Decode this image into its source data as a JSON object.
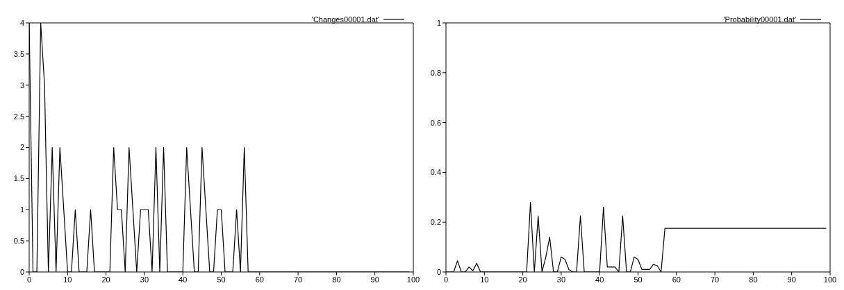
{
  "chart_data": [
    {
      "type": "line",
      "x": [
        0,
        1,
        2,
        3,
        4,
        5,
        6,
        7,
        8,
        9,
        10,
        11,
        12,
        13,
        14,
        15,
        16,
        17,
        18,
        19,
        20,
        21,
        22,
        23,
        24,
        25,
        26,
        27,
        28,
        29,
        30,
        31,
        32,
        33,
        34,
        35,
        36,
        37,
        38,
        39,
        40,
        41,
        42,
        43,
        44,
        45,
        46,
        47,
        48,
        49,
        50,
        51,
        52,
        53,
        54,
        55,
        56,
        57,
        58,
        59,
        60,
        61,
        62,
        63,
        64,
        65,
        66,
        67,
        68,
        69,
        70,
        71,
        72,
        73,
        74,
        75,
        76,
        77,
        78,
        79,
        80,
        81,
        82,
        83,
        84,
        85,
        86,
        87,
        88,
        89,
        90,
        91,
        92,
        93,
        94,
        95,
        96,
        97,
        98,
        99
      ],
      "series": [
        {
          "name": "'Changes00001.dat'",
          "color": "#000000",
          "values": [
            4,
            0,
            0,
            4,
            3,
            0,
            2,
            0,
            2,
            1,
            0,
            0,
            1,
            0,
            0,
            0,
            1,
            0,
            0,
            0,
            0,
            0,
            2,
            1,
            1,
            0,
            2,
            1,
            0,
            1,
            1,
            1,
            0,
            2,
            0,
            2,
            0,
            0,
            0,
            0,
            0,
            2,
            1,
            0,
            0,
            2,
            1,
            0,
            0,
            1,
            1,
            0,
            0,
            0,
            1,
            0,
            2,
            0,
            0,
            0,
            0,
            0,
            0,
            0,
            0,
            0,
            0,
            0,
            0,
            0,
            0,
            0,
            0,
            0,
            0,
            0,
            0,
            0,
            0,
            0,
            0,
            0,
            0,
            0,
            0,
            0,
            0,
            0,
            0,
            0,
            0,
            0,
            0,
            0,
            0,
            0,
            0,
            0,
            0,
            0
          ]
        }
      ],
      "xlim": [
        0,
        100
      ],
      "xticks": [
        0,
        10,
        20,
        30,
        40,
        50,
        60,
        70,
        80,
        90,
        100
      ],
      "ylim": [
        0,
        4
      ],
      "yticks": [
        0,
        0.5,
        1,
        1.5,
        2,
        2.5,
        3,
        3.5,
        4
      ],
      "legend": "top right",
      "grid": false,
      "line_style": "solid",
      "marker": "none"
    },
    {
      "type": "line",
      "x": [
        0,
        1,
        2,
        3,
        4,
        5,
        6,
        7,
        8,
        9,
        10,
        11,
        12,
        13,
        14,
        15,
        16,
        17,
        18,
        19,
        20,
        21,
        22,
        23,
        24,
        25,
        26,
        27,
        28,
        29,
        30,
        31,
        32,
        33,
        34,
        35,
        36,
        37,
        38,
        39,
        40,
        41,
        42,
        43,
        44,
        45,
        46,
        47,
        48,
        49,
        50,
        51,
        52,
        53,
        54,
        55,
        56,
        57,
        58,
        59,
        60,
        61,
        62,
        63,
        64,
        65,
        66,
        67,
        68,
        69,
        70,
        71,
        72,
        73,
        74,
        75,
        76,
        77,
        78,
        79,
        80,
        81,
        82,
        83,
        84,
        85,
        86,
        87,
        88,
        89,
        90,
        91,
        92,
        93,
        94,
        95,
        96,
        97,
        98,
        99
      ],
      "series": [
        {
          "name": "'Probability00001.dat'",
          "color": "#000000",
          "values": [
            0,
            0,
            0,
            0.045,
            0,
            0,
            0.02,
            0.005,
            0.035,
            0,
            0,
            0,
            0,
            0,
            0,
            0,
            0,
            0,
            0,
            0,
            0,
            0,
            0.28,
            0,
            0.225,
            0,
            0.06,
            0.14,
            0,
            0,
            0.06,
            0.05,
            0.01,
            0,
            0,
            0.225,
            0,
            0,
            0,
            0,
            0,
            0.26,
            0.02,
            0.02,
            0.02,
            0,
            0.225,
            0,
            0,
            0.06,
            0.05,
            0.01,
            0.01,
            0.01,
            0.03,
            0.025,
            0,
            0.175,
            0.175,
            0.175,
            0.175,
            0.175,
            0.175,
            0.175,
            0.175,
            0.175,
            0.175,
            0.175,
            0.175,
            0.175,
            0.175,
            0.175,
            0.175,
            0.175,
            0.175,
            0.175,
            0.175,
            0.175,
            0.175,
            0.175,
            0.175,
            0.175,
            0.175,
            0.175,
            0.175,
            0.175,
            0.175,
            0.175,
            0.175,
            0.175,
            0.175,
            0.175,
            0.175,
            0.175,
            0.175,
            0.175,
            0.175,
            0.175,
            0.175,
            0.175
          ]
        }
      ],
      "xlim": [
        0,
        100
      ],
      "xticks": [
        0,
        10,
        20,
        30,
        40,
        50,
        60,
        70,
        80,
        90,
        100
      ],
      "ylim": [
        0,
        1
      ],
      "yticks": [
        0,
        0.2,
        0.4,
        0.6,
        0.8,
        1
      ],
      "legend": "top right",
      "grid": false,
      "line_style": "solid",
      "marker": "none"
    }
  ]
}
